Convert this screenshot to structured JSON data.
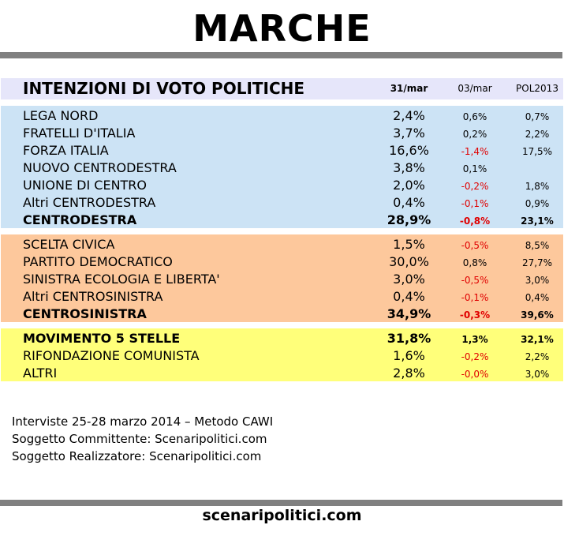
{
  "title": "MARCHE",
  "table": {
    "header": {
      "label": "INTENZIONI DI VOTO POLITICHE",
      "col1": "31/mar",
      "col2": "03/mar",
      "col3": "POL2013"
    }
  },
  "chart_data": {
    "type": "table",
    "title": "MARCHE",
    "columns": [
      "INTENZIONI DI VOTO POLITICHE",
      "31/mar",
      "03/mar",
      "POL2013"
    ],
    "groups": [
      {
        "color": "#cce3f5",
        "rows": [
          {
            "name": "LEGA NORD",
            "v1": "2,4%",
            "v2": "0,6%",
            "v3": "0,7%",
            "bold": false
          },
          {
            "name": "FRATELLI D'ITALIA",
            "v1": "3,7%",
            "v2": "0,2%",
            "v3": "2,2%",
            "bold": false
          },
          {
            "name": "FORZA ITALIA",
            "v1": "16,6%",
            "v2": "-1,4%",
            "v3": "17,5%",
            "bold": false
          },
          {
            "name": "NUOVO CENTRODESTRA",
            "v1": "3,8%",
            "v2": "0,1%",
            "v3": "",
            "bold": false
          },
          {
            "name": "UNIONE DI CENTRO",
            "v1": "2,0%",
            "v2": "-0,2%",
            "v3": "1,8%",
            "bold": false
          },
          {
            "name": "Altri CENTRODESTRA",
            "v1": "0,4%",
            "v2": "-0,1%",
            "v3": "0,9%",
            "bold": false
          },
          {
            "name": "CENTRODESTRA",
            "v1": "28,9%",
            "v2": "-0,8%",
            "v3": "23,1%",
            "bold": true
          }
        ]
      },
      {
        "color": "#fdc89c",
        "rows": [
          {
            "name": "SCELTA CIVICA",
            "v1": "1,5%",
            "v2": "-0,5%",
            "v3": "8,5%",
            "bold": false
          },
          {
            "name": "PARTITO DEMOCRATICO",
            "v1": "30,0%",
            "v2": "0,8%",
            "v3": "27,7%",
            "bold": false
          },
          {
            "name": "SINISTRA ECOLOGIA E LIBERTA'",
            "v1": "3,0%",
            "v2": "-0,5%",
            "v3": "3,0%",
            "bold": false
          },
          {
            "name": "Altri CENTROSINISTRA",
            "v1": "0,4%",
            "v2": "-0,1%",
            "v3": "0,4%",
            "bold": false
          },
          {
            "name": "CENTROSINISTRA",
            "v1": "34,9%",
            "v2": "-0,3%",
            "v3": "39,6%",
            "bold": true
          }
        ]
      },
      {
        "color": "#ffff7a",
        "rows": [
          {
            "name": "MOVIMENTO 5 STELLE",
            "v1": "31,8%",
            "v2": "1,3%",
            "v3": "32,1%",
            "bold": true
          },
          {
            "name": "RIFONDAZIONE COMUNISTA",
            "v1": "1,6%",
            "v2": "-0,2%",
            "v3": "2,2%",
            "bold": false
          },
          {
            "name": "ALTRI",
            "v1": "2,8%",
            "v2": "-0,0%",
            "v3": "3,0%",
            "bold": false
          }
        ]
      }
    ]
  },
  "notes": [
    "Interviste 25-28 marzo 2014 – Metodo CAWI",
    "Soggetto Committente: Scenaripolitici.com",
    "Soggetto Realizzatore: Scenaripolitici.com"
  ],
  "footer": {
    "site": "scenaripolitici.com"
  },
  "colors": {
    "negative": "#e00000",
    "rule": "#808080",
    "header_bg": "#e6e6fa"
  }
}
